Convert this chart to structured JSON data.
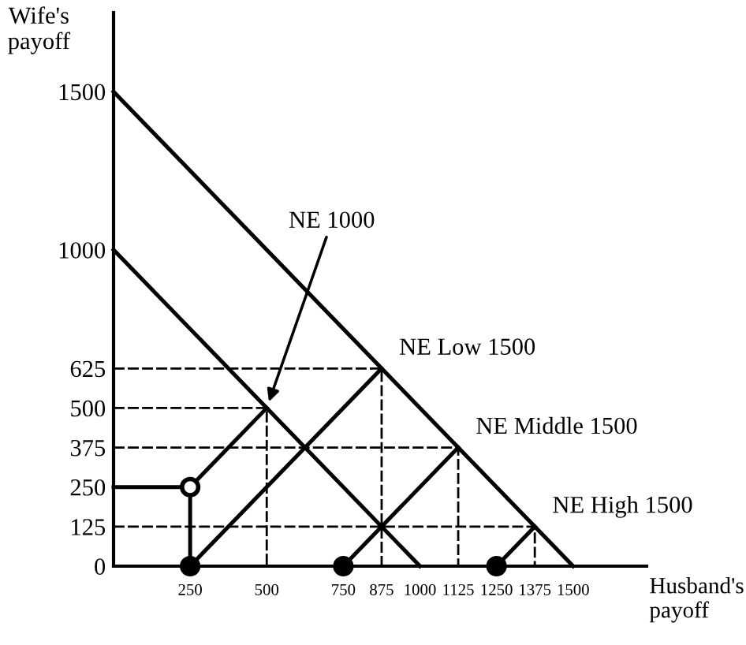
{
  "chart_data": {
    "type": "line",
    "xlabel": "Husband's\npayoff",
    "ylabel": "Wife's\npayoff",
    "xlim": [
      0,
      1740
    ],
    "ylim": [
      0,
      1750
    ],
    "xticks": [
      250,
      500,
      750,
      875,
      1000,
      1125,
      1250,
      1375,
      1500
    ],
    "yticks": [
      0,
      125,
      250,
      375,
      500,
      625,
      1000,
      1500
    ],
    "grid": false,
    "series": [
      {
        "x": [
          0,
          1000
        ],
        "values": [
          1000,
          0
        ],
        "color": "#000000"
      },
      {
        "x": [
          0,
          1500
        ],
        "values": [
          1500,
          0
        ],
        "color": "#000000"
      },
      {
        "x": [
          250,
          500
        ],
        "values": [
          250,
          500
        ],
        "color": "#000000"
      },
      {
        "x": [
          250,
          875
        ],
        "values": [
          0,
          625
        ],
        "color": "#000000"
      },
      {
        "x": [
          750,
          1125
        ],
        "values": [
          0,
          375
        ],
        "color": "#000000"
      },
      {
        "x": [
          1250,
          1375
        ],
        "values": [
          0,
          125
        ],
        "color": "#000000"
      },
      {
        "x": [
          0,
          250,
          250
        ],
        "values": [
          250,
          250,
          0
        ],
        "color": "#000000"
      },
      {
        "x": [
          0,
          875,
          875
        ],
        "values": [
          625,
          625,
          0
        ],
        "color": "#000000",
        "line_style": "dashed"
      },
      {
        "x": [
          0,
          500,
          500
        ],
        "values": [
          500,
          500,
          0
        ],
        "color": "#000000",
        "line_style": "dashed"
      },
      {
        "x": [
          0,
          1125,
          1125
        ],
        "values": [
          375,
          375,
          0
        ],
        "color": "#000000",
        "line_style": "dashed"
      },
      {
        "x": [
          0,
          1375,
          1375
        ],
        "values": [
          125,
          125,
          0
        ],
        "color": "#000000",
        "line_style": "dashed"
      },
      {
        "type": "scatter",
        "x": [
          250,
          750,
          1250
        ],
        "values": [
          0,
          0,
          0
        ],
        "color": "#000000",
        "marker": "circle"
      },
      {
        "type": "scatter",
        "x": [
          250
        ],
        "values": [
          250
        ],
        "color": "#ffffff",
        "marker": "circle"
      }
    ],
    "annotations": [
      {
        "text": "NE 1000",
        "x": 500,
        "y": 500
      },
      {
        "text": "NE Low 1500",
        "x": 875,
        "y": 625
      },
      {
        "text": "NE Middle 1500",
        "x": 1125,
        "y": 375
      },
      {
        "text": "NE High 1500",
        "x": 1375,
        "y": 125
      }
    ]
  }
}
